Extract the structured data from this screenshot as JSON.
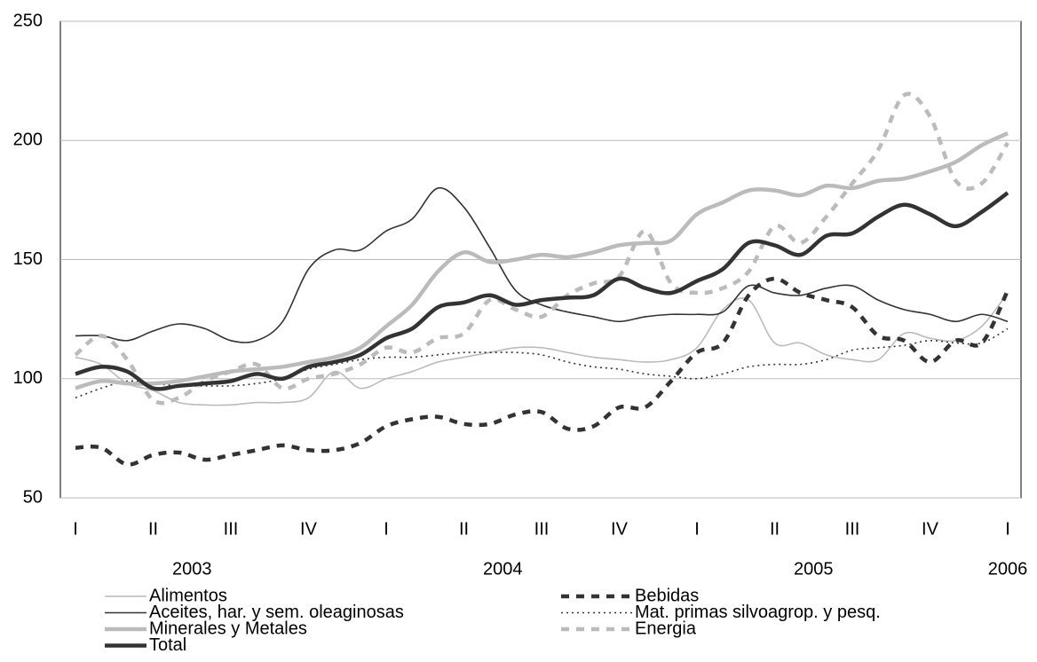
{
  "chart_data": {
    "type": "line",
    "categories": [
      "I",
      null,
      null,
      "II",
      null,
      null,
      "III",
      null,
      null,
      "IV",
      null,
      null,
      "I",
      null,
      null,
      "II",
      null,
      null,
      "III",
      null,
      null,
      "IV",
      null,
      null,
      "I",
      null,
      null,
      "II",
      null,
      null,
      "III",
      null,
      null,
      "IV",
      null,
      null,
      "I"
    ],
    "year_labels": [
      "2003",
      "2004",
      "2005",
      "2006"
    ],
    "ylim": [
      50,
      250
    ],
    "yticks": [
      50,
      100,
      150,
      200,
      250
    ],
    "grid": true,
    "series": [
      {
        "name": "Alimentos",
        "color": "#bbbbbb",
        "line_style": "solid",
        "line_width": "thin",
        "values": [
          109,
          106,
          98,
          95,
          90,
          89,
          89,
          90,
          90,
          92,
          103,
          96,
          100,
          103,
          107,
          109,
          111,
          113,
          113,
          111,
          109,
          108,
          107,
          108,
          113,
          129,
          133,
          115,
          115,
          110,
          108,
          108,
          119,
          117,
          116,
          122,
          136
        ]
      },
      {
        "name": "Bebidas",
        "color": "#333333",
        "line_style": "dashed",
        "line_width": "thick",
        "values": [
          71,
          71,
          64,
          68,
          69,
          66,
          68,
          70,
          72,
          70,
          70,
          73,
          80,
          83,
          84,
          81,
          81,
          85,
          86,
          79,
          80,
          88,
          88,
          99,
          111,
          115,
          135,
          142,
          136,
          133,
          130,
          118,
          116,
          107,
          116,
          115,
          137
        ]
      },
      {
        "name": "Aceites, har. y sem. oleaginosas",
        "color": "#333333",
        "line_style": "solid",
        "line_width": "thin",
        "values": [
          118,
          118,
          116,
          120,
          123,
          121,
          116,
          116,
          124,
          146,
          154,
          154,
          162,
          167,
          180,
          172,
          155,
          137,
          131,
          128,
          126,
          124,
          126,
          127,
          127,
          128,
          139,
          136,
          135,
          138,
          139,
          133,
          129,
          127,
          124,
          127,
          124
        ]
      },
      {
        "name": "Mat. primas silvoagrop. y pesq.",
        "color": "#333333",
        "line_style": "dotted",
        "line_width": "thin",
        "values": [
          92,
          96,
          99,
          98,
          97,
          97,
          97,
          98,
          100,
          104,
          106,
          108,
          109,
          109,
          110,
          111,
          111,
          111,
          110,
          107,
          105,
          104,
          102,
          101,
          100,
          102,
          105,
          106,
          106,
          108,
          112,
          113,
          114,
          116,
          115,
          115,
          121
        ]
      },
      {
        "name": "Minerales y Metales",
        "color": "#bbbbbb",
        "line_style": "solid",
        "line_width": "thick",
        "values": [
          96,
          99,
          98,
          98,
          99,
          101,
          103,
          104,
          105,
          107,
          109,
          113,
          122,
          131,
          145,
          153,
          149,
          150,
          152,
          151,
          153,
          156,
          157,
          158,
          169,
          174,
          179,
          179,
          177,
          181,
          180,
          183,
          184,
          187,
          191,
          198,
          203
        ]
      },
      {
        "name": "Energia",
        "color": "#bbbbbb",
        "line_style": "dashed",
        "line_width": "thick",
        "values": [
          110,
          118,
          108,
          91,
          92,
          99,
          103,
          106,
          96,
          100,
          102,
          106,
          113,
          111,
          117,
          119,
          133,
          129,
          126,
          135,
          140,
          143,
          162,
          140,
          136,
          138,
          145,
          164,
          157,
          168,
          182,
          196,
          219,
          210,
          183,
          182,
          199
        ]
      },
      {
        "name": "Total",
        "color": "#333333",
        "line_style": "solid",
        "line_width": "thick",
        "values": [
          102,
          105,
          103,
          96,
          97,
          98,
          99,
          102,
          100,
          105,
          107,
          110,
          117,
          121,
          130,
          132,
          135,
          131,
          133,
          134,
          135,
          142,
          138,
          136,
          141,
          146,
          157,
          156,
          152,
          160,
          161,
          168,
          173,
          169,
          164,
          170,
          178
        ]
      }
    ]
  }
}
